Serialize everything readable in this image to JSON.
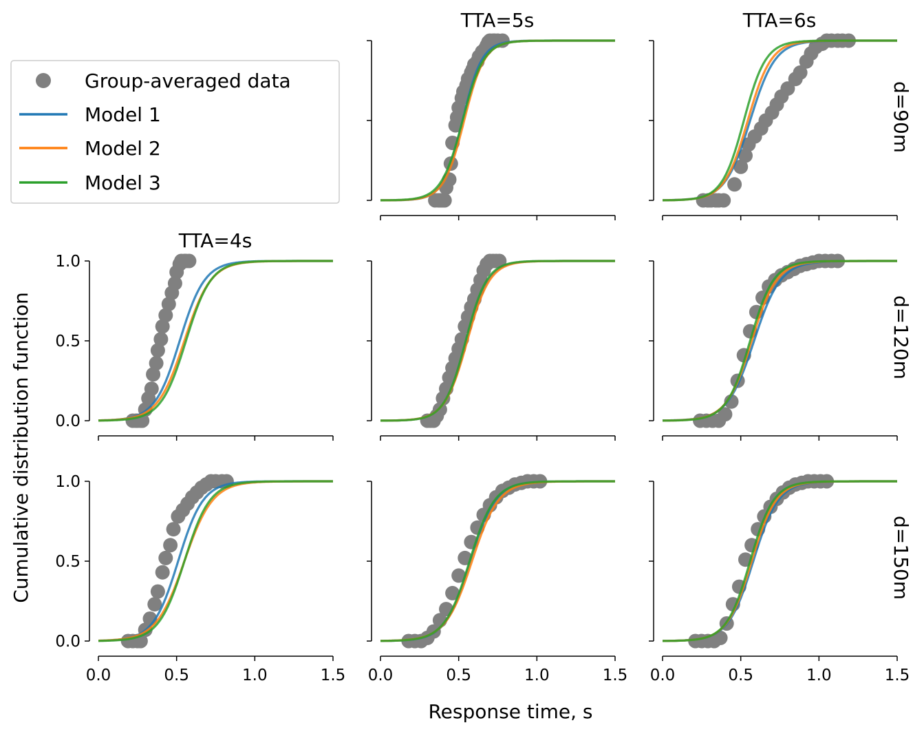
{
  "figure": {
    "xlabel": "Response time, s",
    "ylabel": "Cumulative distribution function",
    "col_titles": [
      "TTA=4s",
      "TTA=5s",
      "TTA=6s"
    ],
    "row_labels": [
      "d=90m",
      "d=120m",
      "d=150m"
    ]
  },
  "legend": {
    "placement": "top-left",
    "entries": [
      {
        "label": "Group-averaged data",
        "kind": "marker",
        "color": "#808080"
      },
      {
        "label": "Model 1",
        "kind": "line",
        "color": "#1f77b4"
      },
      {
        "label": "Model 2",
        "kind": "line",
        "color": "#ff7f0e"
      },
      {
        "label": "Model 3",
        "kind": "line",
        "color": "#2ca02c"
      }
    ]
  },
  "chart_data": {
    "type": "line",
    "layout": "3x3 grid; top-left panel (TTA=4s, d=90m) is empty and holds the legend",
    "x_ticks": [
      "0.0",
      "0.5",
      "1.0",
      "1.5"
    ],
    "y_ticks": [
      "0.0",
      "0.5",
      "1.0"
    ],
    "xlim": [
      0,
      1.5
    ],
    "ylim": [
      0,
      1
    ],
    "grid": false,
    "series_styles": {
      "data": {
        "name": "Group-averaged data",
        "color": "#808080"
      },
      "model1": {
        "name": "Model 1",
        "color": "#1f77b4"
      },
      "model2": {
        "name": "Model 2",
        "color": "#ff7f0e"
      },
      "model3": {
        "name": "Model 3",
        "color": "#2ca02c"
      }
    },
    "panels": [
      {
        "row": 0,
        "col": 1,
        "tta": "TTA=5s",
        "d": "d=90m",
        "data_x": [
          0.35,
          0.37,
          0.38,
          0.39,
          0.4,
          0.41,
          0.42,
          0.44,
          0.45,
          0.46,
          0.48,
          0.49,
          0.5,
          0.52,
          0.53,
          0.55,
          0.56,
          0.58,
          0.59,
          0.6,
          0.62,
          0.63,
          0.65,
          0.67,
          0.68,
          0.69,
          0.7,
          0.72,
          0.73,
          0.75,
          0.78
        ],
        "data_y": [
          0.0,
          0.0,
          0.0,
          0.0,
          0.0,
          0.0,
          0.08,
          0.13,
          0.23,
          0.36,
          0.47,
          0.52,
          0.58,
          0.64,
          0.68,
          0.72,
          0.76,
          0.8,
          0.82,
          0.85,
          0.87,
          0.9,
          0.93,
          0.95,
          0.97,
          0.99,
          1.0,
          1.0,
          1.0,
          1.0,
          1.0
        ],
        "model1": {
          "mu": 0.525,
          "s": 0.062
        },
        "model2": {
          "mu": 0.535,
          "s": 0.065
        },
        "model3": {
          "mu": 0.525,
          "s": 0.068
        }
      },
      {
        "row": 0,
        "col": 2,
        "tta": "TTA=6s",
        "d": "d=90m",
        "data_x": [
          0.26,
          0.29,
          0.31,
          0.34,
          0.36,
          0.39,
          0.46,
          0.5,
          0.53,
          0.55,
          0.59,
          0.63,
          0.66,
          0.7,
          0.73,
          0.76,
          0.8,
          0.85,
          0.88,
          0.92,
          0.95,
          0.98,
          1.02,
          1.05,
          1.08,
          1.12,
          1.15,
          1.19
        ],
        "data_y": [
          0.0,
          0.0,
          0.0,
          0.0,
          0.0,
          0.0,
          0.1,
          0.21,
          0.28,
          0.35,
          0.4,
          0.45,
          0.5,
          0.55,
          0.6,
          0.65,
          0.7,
          0.76,
          0.8,
          0.87,
          0.92,
          0.96,
          0.98,
          1.0,
          1.0,
          1.0,
          1.0,
          1.0
        ],
        "model1": {
          "mu": 0.56,
          "s": 0.08
        },
        "model2": {
          "mu": 0.545,
          "s": 0.075
        },
        "model3": {
          "mu": 0.52,
          "s": 0.07
        }
      },
      {
        "row": 1,
        "col": 0,
        "tta": "TTA=4s",
        "d": "d=120m",
        "data_x": [
          0.22,
          0.24,
          0.25,
          0.27,
          0.28,
          0.3,
          0.32,
          0.34,
          0.35,
          0.37,
          0.38,
          0.4,
          0.41,
          0.43,
          0.45,
          0.47,
          0.49,
          0.5,
          0.52,
          0.53,
          0.55,
          0.56,
          0.58
        ],
        "data_y": [
          0.0,
          0.0,
          0.0,
          0.0,
          0.0,
          0.07,
          0.14,
          0.2,
          0.29,
          0.36,
          0.44,
          0.51,
          0.59,
          0.66,
          0.73,
          0.8,
          0.86,
          0.93,
          0.98,
          1.0,
          1.0,
          1.0,
          1.0
        ],
        "model1": {
          "mu": 0.52,
          "s": 0.08
        },
        "model2": {
          "mu": 0.55,
          "s": 0.085
        },
        "model3": {
          "mu": 0.56,
          "s": 0.08
        }
      },
      {
        "row": 1,
        "col": 1,
        "tta": "TTA=5s",
        "d": "d=120m",
        "data_x": [
          0.3,
          0.32,
          0.34,
          0.36,
          0.38,
          0.4,
          0.42,
          0.44,
          0.46,
          0.48,
          0.5,
          0.52,
          0.54,
          0.56,
          0.58,
          0.6,
          0.62,
          0.64,
          0.66,
          0.68,
          0.7,
          0.72,
          0.74,
          0.76
        ],
        "data_y": [
          0.0,
          0.0,
          0.0,
          0.03,
          0.07,
          0.14,
          0.2,
          0.27,
          0.33,
          0.39,
          0.45,
          0.51,
          0.59,
          0.65,
          0.71,
          0.76,
          0.82,
          0.88,
          0.94,
          0.98,
          1.0,
          1.0,
          1.0,
          1.0
        ],
        "model1": {
          "mu": 0.55,
          "s": 0.07
        },
        "model2": {
          "mu": 0.555,
          "s": 0.072
        },
        "model3": {
          "mu": 0.545,
          "s": 0.068
        }
      },
      {
        "row": 1,
        "col": 2,
        "tta": "TTA=6s",
        "d": "d=120m",
        "data_x": [
          0.24,
          0.28,
          0.32,
          0.36,
          0.4,
          0.44,
          0.48,
          0.52,
          0.56,
          0.6,
          0.64,
          0.68,
          0.72,
          0.76,
          0.8,
          0.84,
          0.88,
          0.92,
          0.96,
          1.0,
          1.04,
          1.08,
          1.12
        ],
        "data_y": [
          0.0,
          0.0,
          0.0,
          0.0,
          0.04,
          0.12,
          0.25,
          0.41,
          0.56,
          0.68,
          0.77,
          0.84,
          0.88,
          0.91,
          0.93,
          0.95,
          0.97,
          0.98,
          0.99,
          1.0,
          1.0,
          1.0,
          1.0
        ],
        "model1": {
          "mu": 0.585,
          "s": 0.085
        },
        "model2": {
          "mu": 0.57,
          "s": 0.08
        },
        "model3": {
          "mu": 0.56,
          "s": 0.075
        }
      },
      {
        "row": 2,
        "col": 0,
        "tta": "TTA=4s",
        "d": "d=150m",
        "data_x": [
          0.19,
          0.22,
          0.25,
          0.27,
          0.3,
          0.33,
          0.36,
          0.38,
          0.41,
          0.43,
          0.46,
          0.48,
          0.51,
          0.54,
          0.57,
          0.6,
          0.63,
          0.66,
          0.69,
          0.72,
          0.75,
          0.79,
          0.82
        ],
        "data_y": [
          0.0,
          0.0,
          0.0,
          0.0,
          0.07,
          0.14,
          0.23,
          0.31,
          0.43,
          0.52,
          0.6,
          0.7,
          0.78,
          0.82,
          0.86,
          0.9,
          0.93,
          0.96,
          0.98,
          1.0,
          1.0,
          1.0,
          1.0
        ],
        "model1": {
          "mu": 0.51,
          "s": 0.08
        },
        "model2": {
          "mu": 0.55,
          "s": 0.09
        },
        "model3": {
          "mu": 0.55,
          "s": 0.082
        }
      },
      {
        "row": 2,
        "col": 1,
        "tta": "TTA=5s",
        "d": "d=150m",
        "data_x": [
          0.18,
          0.22,
          0.26,
          0.3,
          0.34,
          0.38,
          0.42,
          0.46,
          0.5,
          0.54,
          0.58,
          0.62,
          0.66,
          0.7,
          0.74,
          0.78,
          0.82,
          0.86,
          0.9,
          0.94,
          0.98,
          1.02
        ],
        "data_y": [
          0.0,
          0.0,
          0.0,
          0.02,
          0.06,
          0.13,
          0.2,
          0.3,
          0.41,
          0.52,
          0.62,
          0.71,
          0.79,
          0.85,
          0.9,
          0.94,
          0.96,
          0.98,
          0.99,
          1.0,
          1.0,
          1.0
        ],
        "model1": {
          "mu": 0.575,
          "s": 0.08
        },
        "model2": {
          "mu": 0.585,
          "s": 0.085
        },
        "model3": {
          "mu": 0.57,
          "s": 0.08
        }
      },
      {
        "row": 2,
        "col": 2,
        "tta": "TTA=6s",
        "d": "d=150m",
        "data_x": [
          0.21,
          0.25,
          0.29,
          0.33,
          0.37,
          0.41,
          0.45,
          0.49,
          0.53,
          0.57,
          0.61,
          0.65,
          0.69,
          0.73,
          0.77,
          0.81,
          0.85,
          0.89,
          0.93,
          0.97,
          1.01,
          1.05
        ],
        "data_y": [
          0.0,
          0.0,
          0.0,
          0.0,
          0.02,
          0.11,
          0.23,
          0.34,
          0.51,
          0.6,
          0.7,
          0.78,
          0.84,
          0.89,
          0.93,
          0.96,
          0.98,
          0.99,
          1.0,
          1.0,
          1.0,
          1.0
        ],
        "model1": {
          "mu": 0.58,
          "s": 0.08
        },
        "model2": {
          "mu": 0.57,
          "s": 0.078
        },
        "model3": {
          "mu": 0.56,
          "s": 0.075
        }
      }
    ]
  }
}
